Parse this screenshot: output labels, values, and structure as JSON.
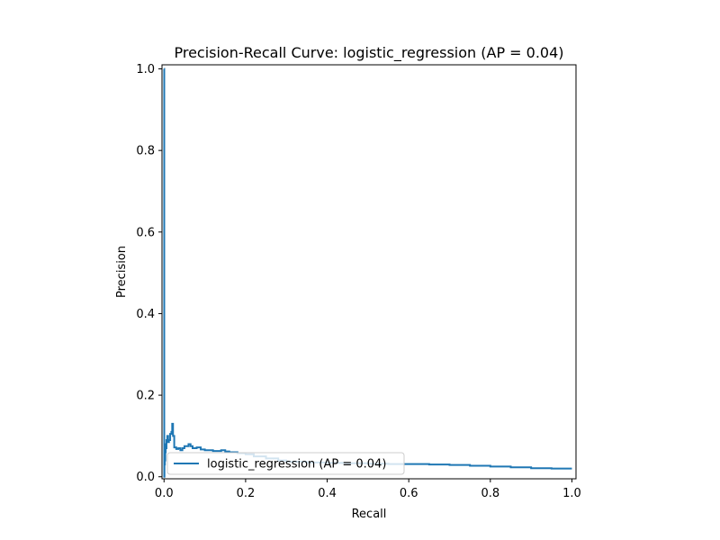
{
  "chart_data": {
    "type": "line",
    "title": "Precision-Recall Curve: logistic_regression (AP = 0.04)",
    "xlabel": "Recall",
    "ylabel": "Precision",
    "xlim": [
      -0.005,
      1.01
    ],
    "ylim": [
      -0.005,
      1.01
    ],
    "xticks": [
      0.0,
      0.2,
      0.4,
      0.6,
      0.8,
      1.0
    ],
    "xtick_labels": [
      "0.0",
      "0.2",
      "0.4",
      "0.6",
      "0.8",
      "1.0"
    ],
    "yticks": [
      0.0,
      0.2,
      0.4,
      0.6,
      0.8,
      1.0
    ],
    "ytick_labels": [
      "0.0",
      "0.2",
      "0.4",
      "0.6",
      "0.8",
      "1.0"
    ],
    "grid": false,
    "legend": {
      "position": "lower-right",
      "entries": [
        "logistic_regression (AP = 0.04)"
      ]
    },
    "colors": {
      "series": "#1f77b4",
      "axes": "#000000",
      "legend_border": "#cccccc"
    },
    "series": [
      {
        "name": "logistic_regression (AP = 0.04)",
        "step": true,
        "recall": [
          1.0,
          0.95,
          0.9,
          0.85,
          0.8,
          0.75,
          0.7,
          0.65,
          0.6,
          0.55,
          0.5,
          0.45,
          0.4,
          0.35,
          0.3,
          0.28,
          0.25,
          0.22,
          0.2,
          0.18,
          0.16,
          0.15,
          0.14,
          0.12,
          0.1,
          0.09,
          0.08,
          0.07,
          0.065,
          0.06,
          0.05,
          0.045,
          0.04,
          0.035,
          0.03,
          0.025,
          0.022,
          0.02,
          0.018,
          0.015,
          0.012,
          0.01,
          0.008,
          0.006,
          0.005,
          0.004,
          0.003,
          0.002,
          0.001,
          0.0005,
          0.0
        ],
        "precision": [
          0.02,
          0.021,
          0.023,
          0.025,
          0.027,
          0.029,
          0.03,
          0.031,
          0.031,
          0.032,
          0.033,
          0.034,
          0.035,
          0.037,
          0.04,
          0.045,
          0.05,
          0.055,
          0.058,
          0.06,
          0.062,
          0.065,
          0.063,
          0.065,
          0.067,
          0.072,
          0.07,
          0.075,
          0.08,
          0.075,
          0.07,
          0.065,
          0.07,
          0.068,
          0.072,
          0.1,
          0.13,
          0.11,
          0.105,
          0.09,
          0.085,
          0.1,
          0.09,
          0.07,
          0.08,
          0.06,
          0.04,
          0.03,
          0.0,
          1.0,
          1.0
        ]
      }
    ]
  }
}
